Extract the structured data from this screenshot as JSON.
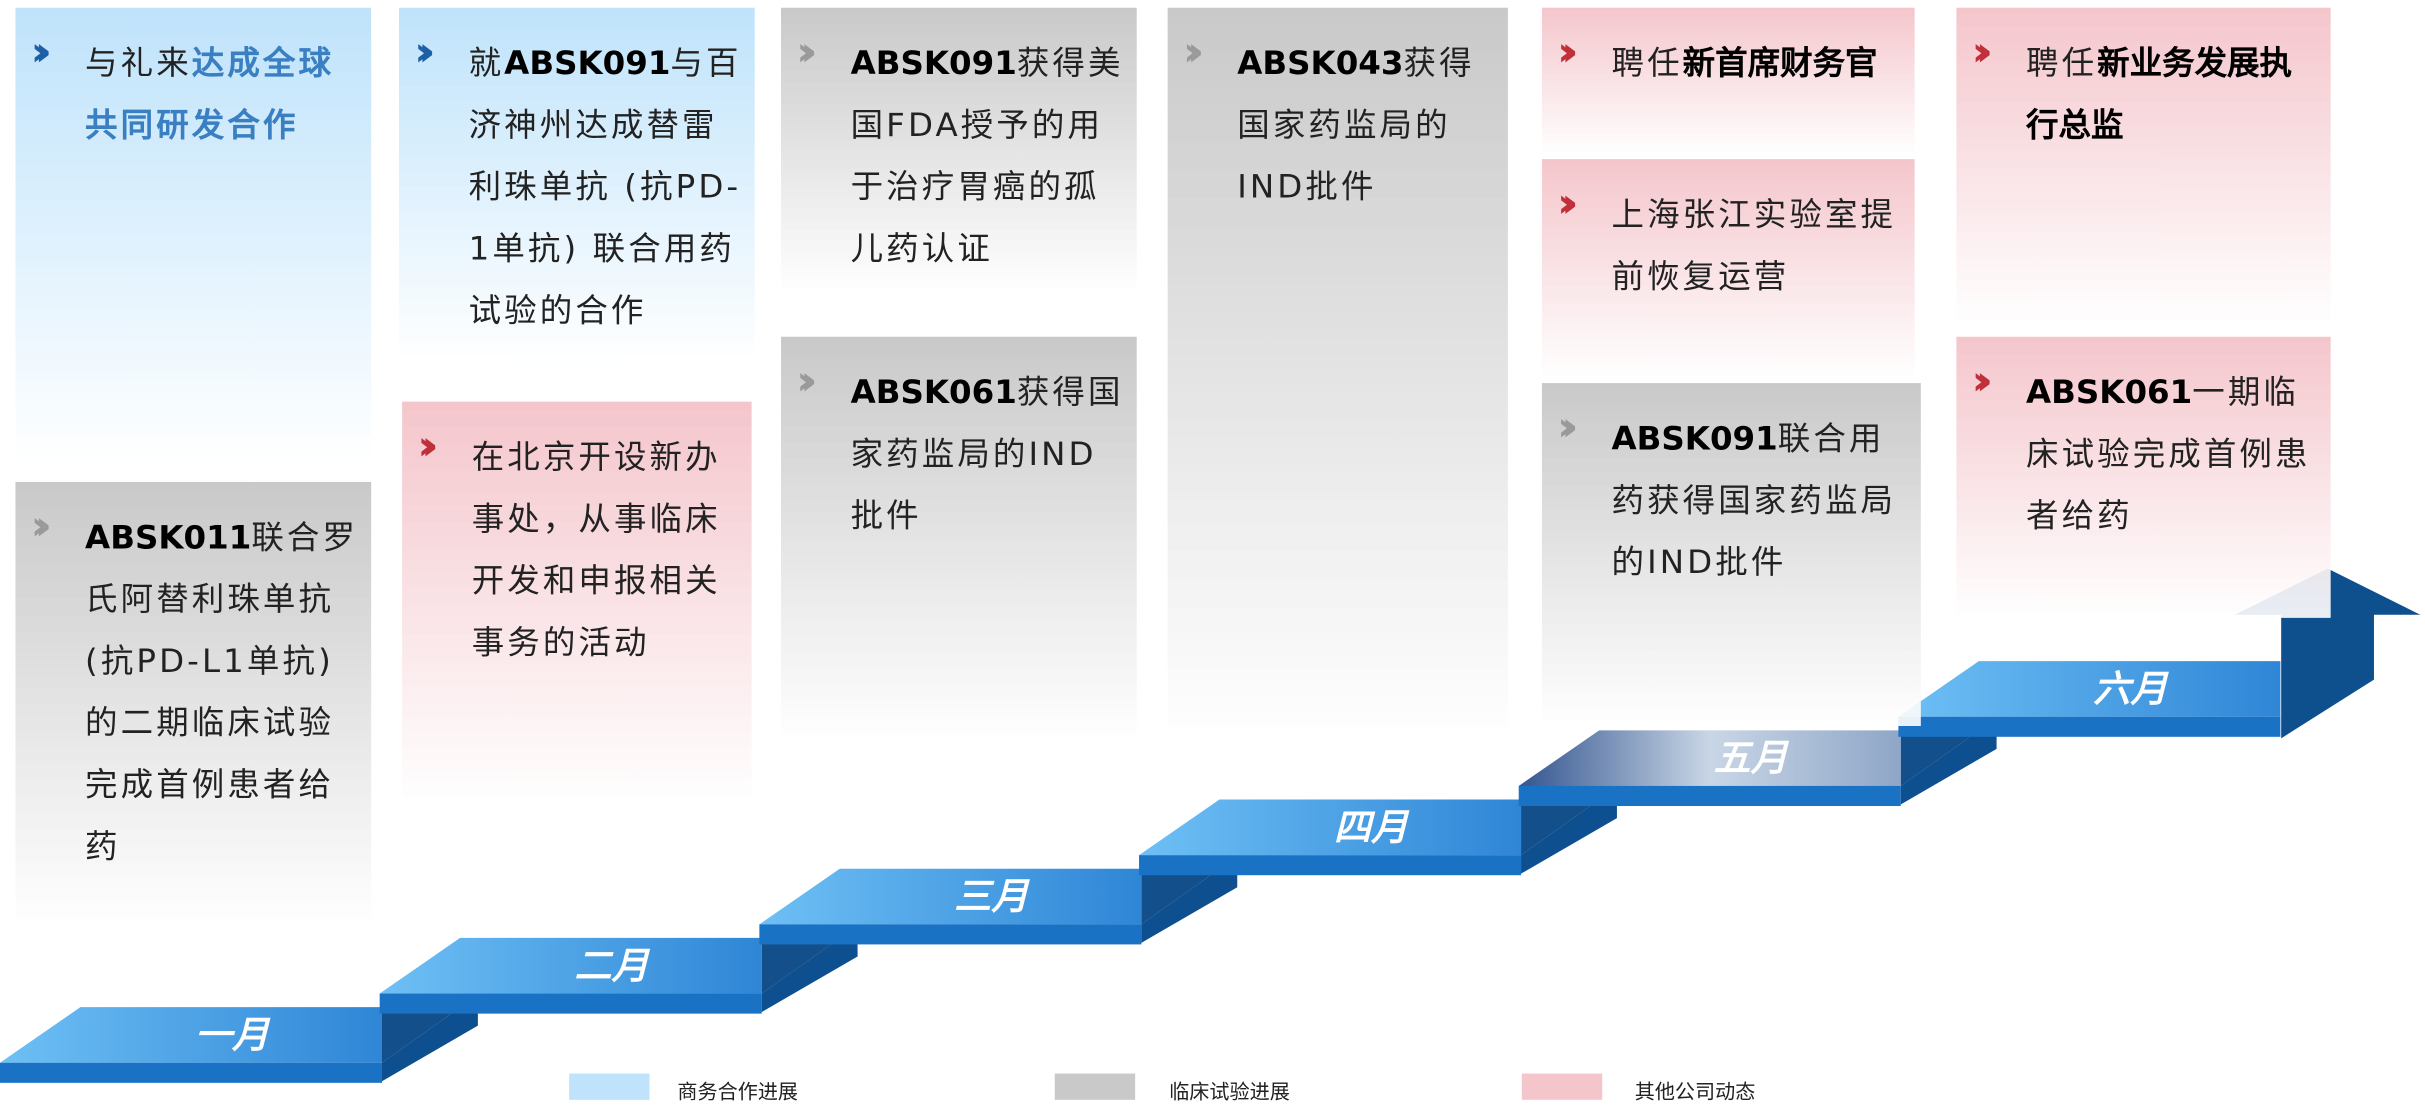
{
  "months": [
    "一月",
    "二月",
    "三月",
    "四月",
    "五月",
    "六月"
  ],
  "legend": [
    {
      "label": "商务合作进展",
      "color": "#bfe3fb",
      "marker": "#1f5fa8"
    },
    {
      "label": "临床试验进展",
      "color": "#c9c9c9",
      "marker": "#9a9a9a"
    },
    {
      "label": "其他公司动态",
      "color": "#f4c6cc",
      "marker": "#c0303a"
    }
  ],
  "cards": [
    {
      "category": 0,
      "runs": [
        {
          "text": "与礼来"
        },
        {
          "text": "达成全球共同研发合作",
          "style": "highlight"
        }
      ]
    },
    {
      "category": 0,
      "runs": [
        {
          "text": "就"
        },
        {
          "text": "ABSK091",
          "style": "bold"
        },
        {
          "text": "与百济神州达成替雷利珠单抗 (抗PD-1单抗) 联合用药试验的合作"
        }
      ]
    },
    {
      "category": 1,
      "runs": [
        {
          "text": "ABSK091",
          "style": "bold"
        },
        {
          "text": "获得美国FDA授予的用于治疗胃癌的孤儿药认证"
        }
      ]
    },
    {
      "category": 1,
      "runs": [
        {
          "text": "ABSK061",
          "style": "bold"
        },
        {
          "text": "获得国家药监局的IND批件"
        }
      ]
    },
    {
      "category": 1,
      "runs": [
        {
          "text": "ABSK043",
          "style": "bold"
        },
        {
          "text": "获得国家药监局的IND批件"
        }
      ]
    },
    {
      "category": 2,
      "runs": [
        {
          "text": "聘任"
        },
        {
          "text": "新首席财务官",
          "style": "bold"
        }
      ]
    },
    {
      "category": 2,
      "runs": [
        {
          "text": "上海张江实验室提前恢复运营"
        }
      ]
    },
    {
      "category": 1,
      "runs": [
        {
          "text": "ABSK091",
          "style": "bold"
        },
        {
          "text": "联合用药获得国家药监局的IND批件"
        }
      ]
    },
    {
      "category": 2,
      "runs": [
        {
          "text": "聘任"
        },
        {
          "text": "新业务发展执行总监",
          "style": "bold"
        }
      ]
    },
    {
      "category": 2,
      "runs": [
        {
          "text": "ABSK061",
          "style": "bold"
        },
        {
          "text": "一期临床试验完成首例患者给药"
        }
      ]
    },
    {
      "category": 2,
      "runs": [
        {
          "text": "在北京开设新办事处，从事临床开发和申报相关事务的活动"
        }
      ]
    },
    {
      "category": 1,
      "runs": [
        {
          "text": "ABSK011",
          "style": "bold"
        },
        {
          "text": "联合罗氏阿替利珠单抗 (抗PD-L1单抗) 的二期临床试验完成首例患者给药"
        }
      ]
    }
  ]
}
